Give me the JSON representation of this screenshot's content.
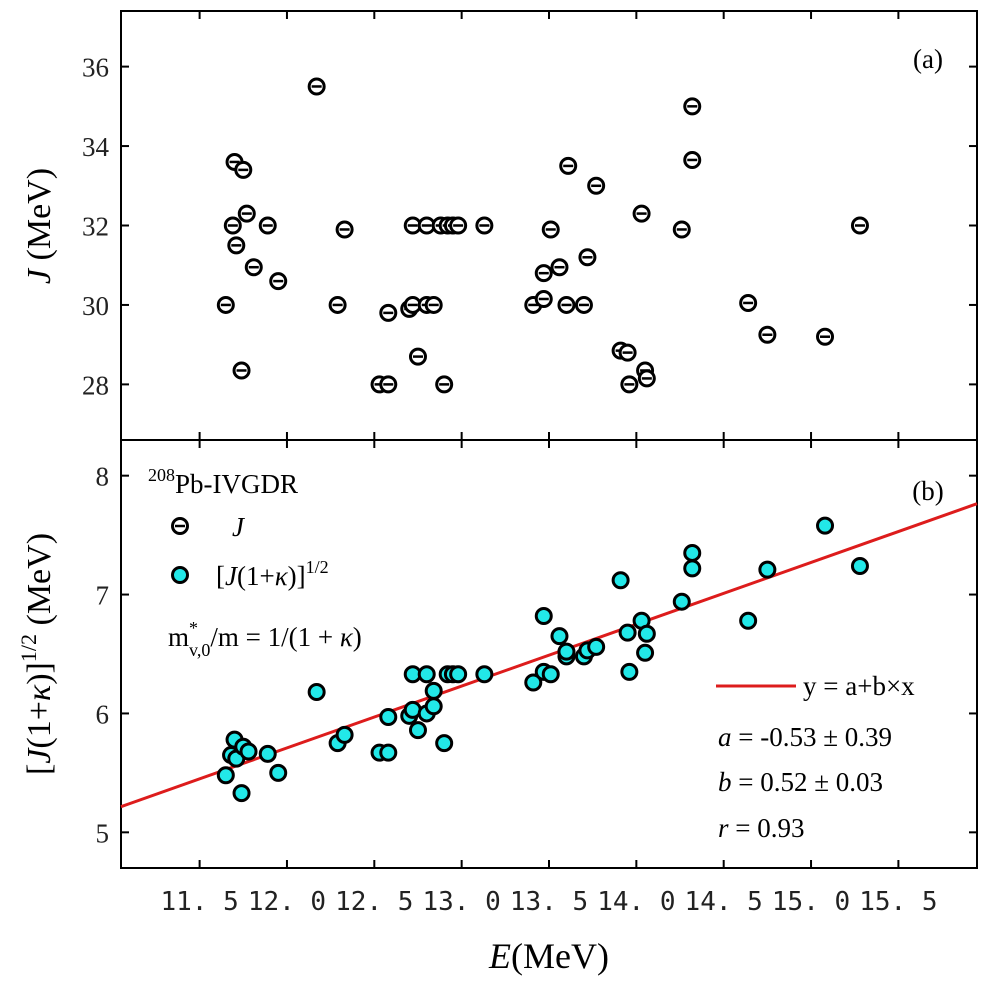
{
  "chart_data": [
    {
      "panel_label": "(a)",
      "type": "scatter",
      "ylabel_var": "J",
      "ylabel_unit": " (MeV)",
      "xlim": [
        11.05,
        15.95
      ],
      "ylim": [
        26.6,
        37.4
      ],
      "yticks": [
        28,
        30,
        32,
        34,
        36
      ],
      "marker": "open-circle-with-bar",
      "points": [
        {
          "x": 11.65,
          "y": 30.0
        },
        {
          "x": 11.69,
          "y": 32.0
        },
        {
          "x": 11.7,
          "y": 33.6
        },
        {
          "x": 11.71,
          "y": 31.5
        },
        {
          "x": 11.74,
          "y": 28.35
        },
        {
          "x": 11.75,
          "y": 33.4
        },
        {
          "x": 11.77,
          "y": 32.3
        },
        {
          "x": 11.81,
          "y": 30.95
        },
        {
          "x": 11.89,
          "y": 32.0
        },
        {
          "x": 11.95,
          "y": 30.6
        },
        {
          "x": 12.17,
          "y": 35.5
        },
        {
          "x": 12.29,
          "y": 30.0
        },
        {
          "x": 12.33,
          "y": 31.9
        },
        {
          "x": 12.53,
          "y": 28.0
        },
        {
          "x": 12.58,
          "y": 28.0
        },
        {
          "x": 12.58,
          "y": 29.8
        },
        {
          "x": 12.7,
          "y": 29.9
        },
        {
          "x": 12.72,
          "y": 30.0
        },
        {
          "x": 12.72,
          "y": 32.0
        },
        {
          "x": 12.75,
          "y": 28.7
        },
        {
          "x": 12.8,
          "y": 30.0
        },
        {
          "x": 12.8,
          "y": 32.0
        },
        {
          "x": 12.84,
          "y": 30.0
        },
        {
          "x": 12.88,
          "y": 32.0
        },
        {
          "x": 12.9,
          "y": 28.0
        },
        {
          "x": 12.92,
          "y": 32.0
        },
        {
          "x": 12.95,
          "y": 32.0
        },
        {
          "x": 12.98,
          "y": 32.0
        },
        {
          "x": 13.13,
          "y": 32.0
        },
        {
          "x": 13.41,
          "y": 30.0
        },
        {
          "x": 13.47,
          "y": 30.15
        },
        {
          "x": 13.47,
          "y": 30.8
        },
        {
          "x": 13.51,
          "y": 31.9
        },
        {
          "x": 13.56,
          "y": 30.95
        },
        {
          "x": 13.6,
          "y": 30.0
        },
        {
          "x": 13.61,
          "y": 33.5
        },
        {
          "x": 13.7,
          "y": 30.0
        },
        {
          "x": 13.72,
          "y": 31.2
        },
        {
          "x": 13.77,
          "y": 33.0
        },
        {
          "x": 13.91,
          "y": 28.85
        },
        {
          "x": 13.95,
          "y": 28.8
        },
        {
          "x": 13.96,
          "y": 28.0
        },
        {
          "x": 14.03,
          "y": 32.3
        },
        {
          "x": 14.05,
          "y": 28.35
        },
        {
          "x": 14.06,
          "y": 28.15
        },
        {
          "x": 14.26,
          "y": 31.9
        },
        {
          "x": 14.32,
          "y": 33.65
        },
        {
          "x": 14.32,
          "y": 35.0
        },
        {
          "x": 14.64,
          "y": 30.05
        },
        {
          "x": 14.75,
          "y": 29.25
        },
        {
          "x": 15.08,
          "y": 29.2
        },
        {
          "x": 15.28,
          "y": 32.0
        }
      ]
    },
    {
      "panel_label": "(b)",
      "type": "scatter",
      "ylabel": "[J(1+κ)]1/2 (MeV)",
      "xlabel_var": "E",
      "xlabel_unit": "(MeV)",
      "xlim": [
        11.05,
        15.95
      ],
      "ylim": [
        4.7,
        8.3
      ],
      "yticks": [
        5,
        6,
        7,
        8
      ],
      "xticks": [
        11.5,
        12.0,
        12.5,
        13.0,
        13.5,
        14.0,
        14.5,
        15.0,
        15.5
      ],
      "xtick_labels": [
        "11. 5",
        "12. 0",
        "12. 5",
        "13. 0",
        "13. 5",
        "14. 0",
        "14. 5",
        "15. 0",
        "15. 5"
      ],
      "points": [
        {
          "x": 11.65,
          "y": 5.48
        },
        {
          "x": 11.68,
          "y": 5.65
        },
        {
          "x": 11.7,
          "y": 5.78
        },
        {
          "x": 11.71,
          "y": 5.62
        },
        {
          "x": 11.74,
          "y": 5.33
        },
        {
          "x": 11.75,
          "y": 5.72
        },
        {
          "x": 11.78,
          "y": 5.68
        },
        {
          "x": 11.89,
          "y": 5.66
        },
        {
          "x": 11.95,
          "y": 5.5
        },
        {
          "x": 12.17,
          "y": 6.18
        },
        {
          "x": 12.29,
          "y": 5.75
        },
        {
          "x": 12.33,
          "y": 5.82
        },
        {
          "x": 12.53,
          "y": 5.67
        },
        {
          "x": 12.58,
          "y": 5.67
        },
        {
          "x": 12.58,
          "y": 5.97
        },
        {
          "x": 12.7,
          "y": 5.98
        },
        {
          "x": 12.72,
          "y": 6.03
        },
        {
          "x": 12.72,
          "y": 6.33
        },
        {
          "x": 12.75,
          "y": 5.86
        },
        {
          "x": 12.8,
          "y": 6.0
        },
        {
          "x": 12.8,
          "y": 6.33
        },
        {
          "x": 12.84,
          "y": 6.06
        },
        {
          "x": 12.84,
          "y": 6.19
        },
        {
          "x": 12.9,
          "y": 5.75
        },
        {
          "x": 12.92,
          "y": 6.33
        },
        {
          "x": 12.95,
          "y": 6.33
        },
        {
          "x": 12.98,
          "y": 6.33
        },
        {
          "x": 13.13,
          "y": 6.33
        },
        {
          "x": 13.41,
          "y": 6.26
        },
        {
          "x": 13.47,
          "y": 6.35
        },
        {
          "x": 13.47,
          "y": 6.82
        },
        {
          "x": 13.51,
          "y": 6.33
        },
        {
          "x": 13.56,
          "y": 6.65
        },
        {
          "x": 13.6,
          "y": 6.48
        },
        {
          "x": 13.6,
          "y": 6.52
        },
        {
          "x": 13.7,
          "y": 6.48
        },
        {
          "x": 13.72,
          "y": 6.53
        },
        {
          "x": 13.77,
          "y": 6.56
        },
        {
          "x": 13.91,
          "y": 7.12
        },
        {
          "x": 13.95,
          "y": 6.68
        },
        {
          "x": 13.96,
          "y": 6.35
        },
        {
          "x": 14.03,
          "y": 6.78
        },
        {
          "x": 14.05,
          "y": 6.51
        },
        {
          "x": 14.06,
          "y": 6.67
        },
        {
          "x": 14.26,
          "y": 6.94
        },
        {
          "x": 14.32,
          "y": 7.22
        },
        {
          "x": 14.32,
          "y": 7.35
        },
        {
          "x": 14.64,
          "y": 6.78
        },
        {
          "x": 14.75,
          "y": 7.21
        },
        {
          "x": 15.08,
          "y": 7.58
        },
        {
          "x": 15.28,
          "y": 7.24
        }
      ],
      "fit_line": {
        "a": -0.53,
        "b": 0.52
      },
      "annotations": {
        "nucleus_mass": "208",
        "nucleus_rest": "Pb-IVGDR",
        "legend_J": "J",
        "legend_sqrt_prefix": "[J(1+κ)]",
        "legend_sqrt_sup": "1/2",
        "mass_m": "m",
        "mass_sup": "*",
        "mass_sub": "v,0",
        "mass_rest": "/m = 1/(1 + κ)",
        "fit_legend": "y = a+b×x",
        "a_label": "a",
        "a_value": " = -0.53 ± 0.39",
        "b_label": "b",
        "b_value": " =  0.52 ± 0.03",
        "r_label": "r",
        "r_value": " =  0.93"
      }
    }
  ],
  "colors": {
    "fit_line": "#dd1c1c",
    "marker_fill_b": "#22e8e8",
    "marker_edge": "#000000"
  }
}
